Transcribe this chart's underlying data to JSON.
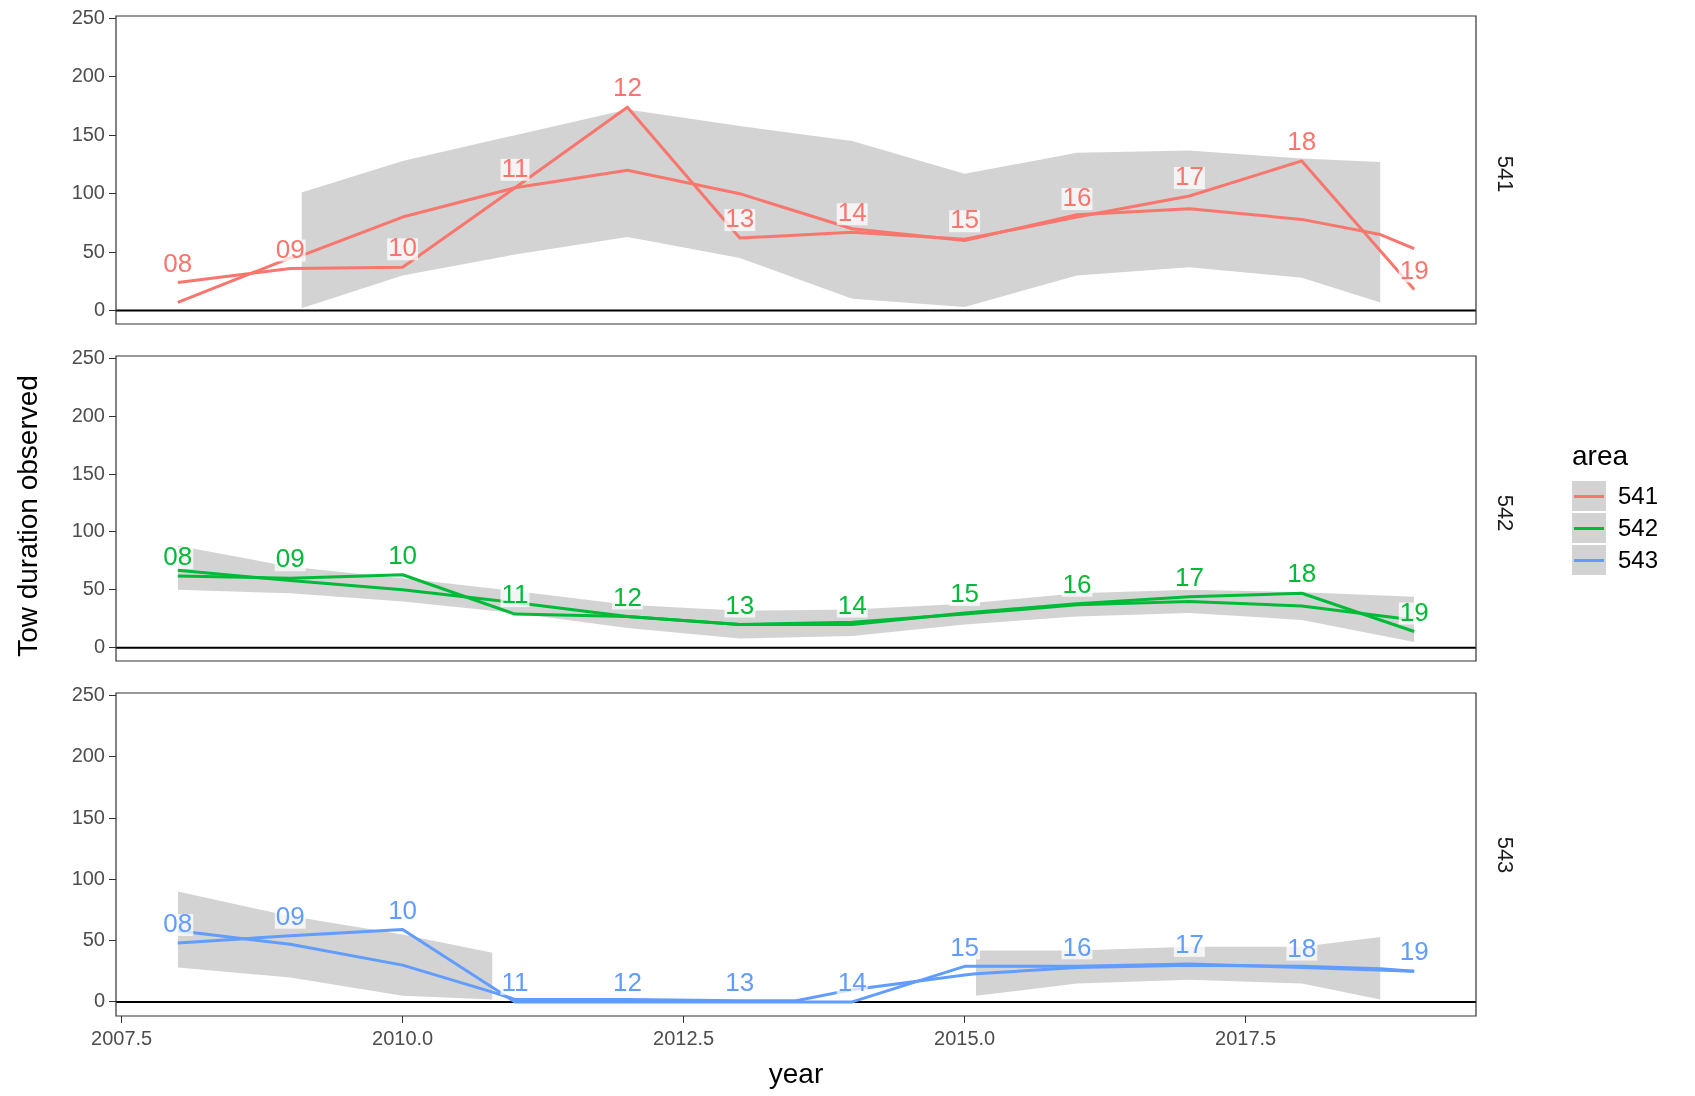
{
  "chart_data": [
    {
      "type": "line",
      "xlim": [
        2007.45,
        2019.55
      ],
      "ylim": [
        -11.5,
        252
      ],
      "yticks": [
        0,
        50,
        100,
        150,
        200,
        250
      ],
      "tick_labels": "y",
      "grid": false,
      "legend": "right",
      "ref_lines": [
        {
          "axis": "y",
          "value": 0,
          "color": "#000000"
        }
      ],
      "annotations": [
        "541",
        {
          "text": "08",
          "x": 2008,
          "y": 24
        },
        {
          "text": "09",
          "x": 2009,
          "y": 36
        },
        {
          "text": "10",
          "x": 2010,
          "y": 37
        },
        {
          "text": "11",
          "x": 2011,
          "y": 105
        },
        {
          "text": "12",
          "x": 2012,
          "y": 174
        },
        {
          "text": "13",
          "x": 2013,
          "y": 62
        },
        {
          "text": "14",
          "x": 2014,
          "y": 67
        },
        {
          "text": "15",
          "x": 2015,
          "y": 61
        },
        {
          "text": "16",
          "x": 2016,
          "y": 80
        },
        {
          "text": "17",
          "x": 2017,
          "y": 98
        },
        {
          "text": "18",
          "x": 2018,
          "y": 128
        },
        {
          "text": "19",
          "x": 2019,
          "y": 18
        }
      ],
      "series": [
        {
          "color": "#f8766d",
          "x": [
            2008,
            2009,
            2009.1,
            2010,
            2011,
            2012,
            2013,
            2014,
            2015,
            2016,
            2017,
            2018,
            2018.7,
            2019
          ],
          "values": [
            7,
            45,
            47,
            80,
            105,
            120,
            100,
            70,
            60,
            82,
            87,
            78,
            65,
            53
          ],
          "lower": [
            null,
            null,
            2,
            30,
            48,
            63,
            45,
            10,
            3,
            30,
            37,
            28,
            7,
            null
          ],
          "upper": [
            null,
            null,
            101,
            128,
            150,
            172,
            158,
            145,
            117,
            135,
            137,
            130,
            127,
            null
          ]
        },
        {
          "name": "541",
          "color": "#f8766d",
          "x": [
            2008,
            2009,
            2010,
            2011,
            2012,
            2013,
            2014,
            2015,
            2016,
            2017,
            2018,
            2019
          ],
          "values": [
            24,
            36,
            37,
            105,
            174,
            62,
            67,
            61,
            80,
            98,
            128,
            18
          ]
        }
      ]
    },
    {
      "type": "line",
      "ylabel": "Tow duration observed",
      "legend_title": "area",
      "xlim": [
        2007.45,
        2019.55
      ],
      "ylim": [
        -11.5,
        252
      ],
      "yticks": [
        0,
        50,
        100,
        150,
        200,
        250
      ],
      "tick_labels": "y",
      "grid": false,
      "legend": "right",
      "ref_lines": [
        {
          "axis": "y",
          "value": 0,
          "color": "#000000"
        }
      ],
      "annotations": [
        "542",
        {
          "text": "08",
          "x": 2008,
          "y": 62
        },
        {
          "text": "09",
          "x": 2009,
          "y": 60
        },
        {
          "text": "10",
          "x": 2010,
          "y": 63
        },
        {
          "text": "11",
          "x": 2011,
          "y": 29
        },
        {
          "text": "12",
          "x": 2012,
          "y": 27
        },
        {
          "text": "13",
          "x": 2013,
          "y": 20
        },
        {
          "text": "14",
          "x": 2014,
          "y": 20
        },
        {
          "text": "15",
          "x": 2015,
          "y": 30
        },
        {
          "text": "16",
          "x": 2016,
          "y": 38
        },
        {
          "text": "17",
          "x": 2017,
          "y": 44
        },
        {
          "text": "18",
          "x": 2018,
          "y": 47
        },
        {
          "text": "19",
          "x": 2019,
          "y": 14
        }
      ],
      "series": [
        {
          "color": "#00ba38",
          "x": [
            2008,
            2009,
            2010,
            2011,
            2012,
            2013,
            2014,
            2015,
            2016,
            2017,
            2018,
            2019
          ],
          "values": [
            67,
            58,
            50,
            39,
            27,
            20,
            22,
            29,
            37,
            40,
            36,
            24
          ],
          "lower": [
            50,
            47,
            40,
            30,
            17,
            8,
            10,
            20,
            27,
            30,
            24,
            5
          ],
          "upper": [
            88,
            70,
            60,
            49,
            37,
            32,
            33,
            38,
            47,
            50,
            48,
            44
          ]
        },
        {
          "name": "542",
          "color": "#00ba38",
          "x": [
            2008,
            2009,
            2010,
            2011,
            2012,
            2013,
            2014,
            2015,
            2016,
            2017,
            2018,
            2019
          ],
          "values": [
            62,
            60,
            63,
            29,
            27,
            20,
            20,
            30,
            38,
            44,
            47,
            14
          ]
        }
      ]
    },
    {
      "type": "line",
      "xlabel": "year",
      "xlim": [
        2007.45,
        2019.55
      ],
      "xticks": [
        {
          "value": 2007.5,
          "label": "2007.5"
        },
        {
          "value": 2010,
          "label": "2010.0"
        },
        {
          "value": 2012.5,
          "label": "2012.5"
        },
        {
          "value": 2015,
          "label": "2015.0"
        },
        {
          "value": 2017.5,
          "label": "2017.5"
        }
      ],
      "ylim": [
        -11.5,
        252
      ],
      "yticks": [
        0,
        50,
        100,
        150,
        200,
        250
      ],
      "grid": false,
      "legend": "right",
      "ref_lines": [
        {
          "axis": "y",
          "value": 0,
          "color": "#000000"
        }
      ],
      "annotations": [
        "543",
        {
          "text": "08",
          "x": 2008,
          "y": 48
        },
        {
          "text": "09",
          "x": 2009,
          "y": 54
        },
        {
          "text": "10",
          "x": 2010,
          "y": 59
        },
        {
          "text": "11",
          "x": 2011,
          "y": 0
        },
        {
          "text": "12",
          "x": 2012,
          "y": 0
        },
        {
          "text": "13",
          "x": 2013,
          "y": 0
        },
        {
          "text": "14",
          "x": 2014,
          "y": 0
        },
        {
          "text": "15",
          "x": 2015,
          "y": 29
        },
        {
          "text": "16",
          "x": 2016,
          "y": 29
        },
        {
          "text": "17",
          "x": 2017,
          "y": 31
        },
        {
          "text": "18",
          "x": 2018,
          "y": 28
        },
        {
          "text": "19",
          "x": 2019,
          "y": 25
        }
      ],
      "series": [
        {
          "color": "#619cff",
          "x": [
            2008,
            2009,
            2010,
            2010.8,
            2011,
            2012,
            2013,
            2013.5,
            2014,
            2015,
            2015.1,
            2016,
            2017,
            2018,
            2018.7,
            2019
          ],
          "values": [
            58,
            47,
            30,
            8,
            2,
            2,
            1,
            1,
            10,
            22,
            23,
            28,
            30,
            29,
            27,
            25
          ],
          "lower": [
            28,
            20,
            5,
            2,
            null,
            null,
            null,
            null,
            null,
            null,
            5,
            15,
            18,
            15,
            2,
            null
          ],
          "upper": [
            90,
            70,
            55,
            40,
            null,
            null,
            null,
            null,
            null,
            null,
            42,
            42,
            45,
            45,
            53,
            null
          ]
        },
        {
          "name": "543",
          "color": "#619cff",
          "x": [
            2008,
            2009,
            2010,
            2011,
            2012,
            2013,
            2014,
            2015,
            2016,
            2017,
            2018,
            2019
          ],
          "values": [
            48,
            54,
            59,
            0,
            0,
            0,
            0,
            29,
            29,
            31,
            28,
            25
          ]
        }
      ]
    }
  ]
}
